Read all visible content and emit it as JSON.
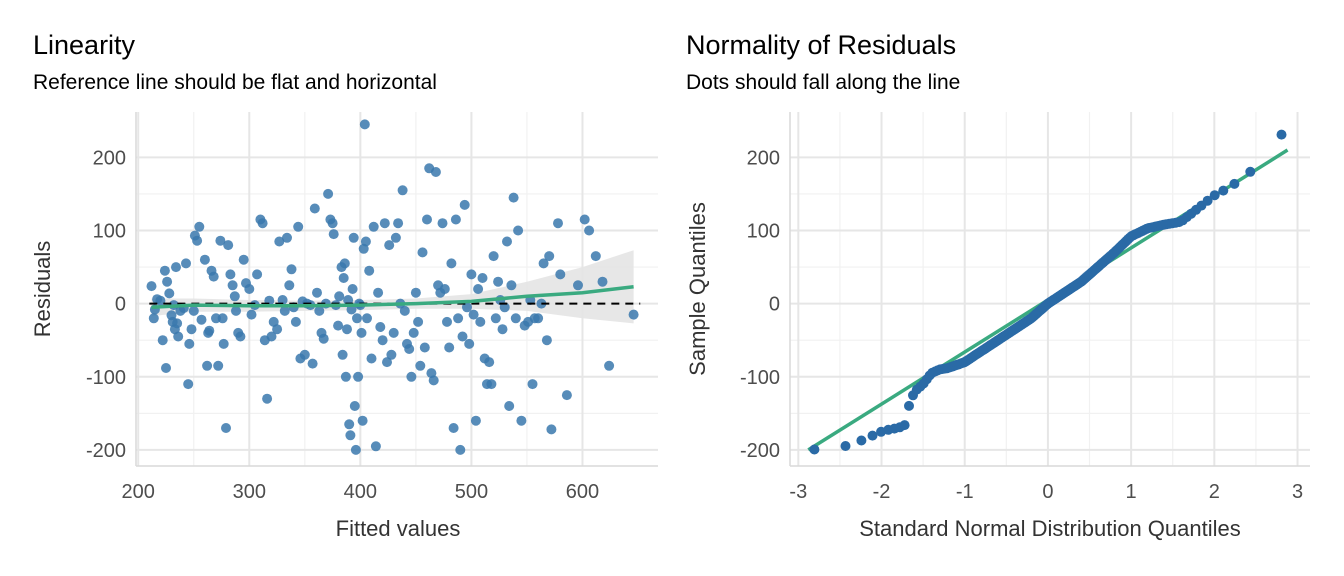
{
  "chart_data": [
    {
      "type": "scatter",
      "title": "Linearity",
      "subtitle": "Reference line should be flat and horizontal",
      "xlabel": "Fitted values",
      "ylabel": "Residuals",
      "xlim": [
        198,
        668
      ],
      "ylim": [
        -222,
        262
      ],
      "x_ticks": [
        200,
        300,
        400,
        500,
        600
      ],
      "x_tick_labels": [
        "200",
        "300",
        "400",
        "500",
        "600"
      ],
      "y_ticks": [
        -200,
        -100,
        0,
        100,
        200
      ],
      "y_tick_labels": [
        "-200",
        "-100",
        "0",
        "100",
        "200"
      ],
      "grid": true,
      "reference_line": 0,
      "colors": {
        "points": "#3a78ad",
        "smooth": "#3aaa80",
        "band": "#e4e4e4",
        "reference": "#000000",
        "grid": "#e8e8e8"
      },
      "points": [
        [
          212,
          24
        ],
        [
          214,
          -20
        ],
        [
          215,
          -8
        ],
        [
          217,
          6
        ],
        [
          220,
          4
        ],
        [
          222,
          -50
        ],
        [
          224,
          45
        ],
        [
          225,
          -88
        ],
        [
          226,
          30
        ],
        [
          228,
          14
        ],
        [
          230,
          -16
        ],
        [
          231,
          -25
        ],
        [
          232,
          -2
        ],
        [
          233,
          -35
        ],
        [
          234,
          50
        ],
        [
          235,
          -27
        ],
        [
          236,
          -45
        ],
        [
          238,
          -10
        ],
        [
          241,
          -6
        ],
        [
          243,
          55
        ],
        [
          245,
          -110
        ],
        [
          246,
          -55
        ],
        [
          248,
          -35
        ],
        [
          250,
          -10
        ],
        [
          251,
          93
        ],
        [
          253,
          86
        ],
        [
          255,
          105
        ],
        [
          257,
          -22
        ],
        [
          260,
          60
        ],
        [
          262,
          -85
        ],
        [
          263,
          -40
        ],
        [
          264,
          -37
        ],
        [
          266,
          45
        ],
        [
          268,
          37
        ],
        [
          270,
          -20
        ],
        [
          272,
          -85
        ],
        [
          274,
          86
        ],
        [
          276,
          -20
        ],
        [
          277,
          -55
        ],
        [
          279,
          -170
        ],
        [
          281,
          80
        ],
        [
          283,
          40
        ],
        [
          285,
          25
        ],
        [
          287,
          10
        ],
        [
          288,
          -10
        ],
        [
          290,
          -40
        ],
        [
          292,
          -45
        ],
        [
          295,
          60
        ],
        [
          297,
          28
        ],
        [
          300,
          20
        ],
        [
          302,
          -15
        ],
        [
          305,
          -2
        ],
        [
          307,
          40
        ],
        [
          310,
          115
        ],
        [
          312,
          110
        ],
        [
          314,
          -50
        ],
        [
          316,
          -130
        ],
        [
          318,
          4
        ],
        [
          320,
          -45
        ],
        [
          322,
          -25
        ],
        [
          325,
          -35
        ],
        [
          327,
          85
        ],
        [
          330,
          5
        ],
        [
          332,
          -10
        ],
        [
          334,
          90
        ],
        [
          336,
          25
        ],
        [
          338,
          47
        ],
        [
          340,
          -5
        ],
        [
          342,
          -25
        ],
        [
          344,
          105
        ],
        [
          346,
          -75
        ],
        [
          348,
          3
        ],
        [
          350,
          -70
        ],
        [
          352,
          0
        ],
        [
          355,
          -2
        ],
        [
          357,
          -82
        ],
        [
          359,
          130
        ],
        [
          361,
          15
        ],
        [
          363,
          -10
        ],
        [
          365,
          -40
        ],
        [
          367,
          -48
        ],
        [
          369,
          0
        ],
        [
          371,
          150
        ],
        [
          373,
          115
        ],
        [
          375,
          110
        ],
        [
          376,
          95
        ],
        [
          378,
          -2
        ],
        [
          380,
          -30
        ],
        [
          381,
          10
        ],
        [
          383,
          50
        ],
        [
          384,
          -70
        ],
        [
          385,
          35
        ],
        [
          386,
          55
        ],
        [
          387,
          -100
        ],
        [
          388,
          -35
        ],
        [
          389,
          5
        ],
        [
          390,
          -165
        ],
        [
          391,
          -180
        ],
        [
          392,
          -8
        ],
        [
          393,
          20
        ],
        [
          394,
          90
        ],
        [
          395,
          -140
        ],
        [
          396,
          -200
        ],
        [
          397,
          -20
        ],
        [
          398,
          -100
        ],
        [
          399,
          0
        ],
        [
          400,
          -2
        ],
        [
          401,
          -40
        ],
        [
          402,
          -160
        ],
        [
          403,
          75
        ],
        [
          404,
          245
        ],
        [
          405,
          85
        ],
        [
          406,
          -20
        ],
        [
          408,
          45
        ],
        [
          410,
          -75
        ],
        [
          412,
          105
        ],
        [
          414,
          -195
        ],
        [
          416,
          15
        ],
        [
          418,
          -32
        ],
        [
          420,
          -50
        ],
        [
          422,
          110
        ],
        [
          424,
          -80
        ],
        [
          426,
          80
        ],
        [
          428,
          -70
        ],
        [
          430,
          -40
        ],
        [
          432,
          90
        ],
        [
          434,
          110
        ],
        [
          436,
          0
        ],
        [
          438,
          155
        ],
        [
          440,
          -10
        ],
        [
          442,
          -55
        ],
        [
          444,
          -62
        ],
        [
          446,
          -100
        ],
        [
          448,
          -40
        ],
        [
          450,
          15
        ],
        [
          452,
          -25
        ],
        [
          454,
          -85
        ],
        [
          456,
          70
        ],
        [
          458,
          -60
        ],
        [
          460,
          115
        ],
        [
          462,
          185
        ],
        [
          464,
          -95
        ],
        [
          466,
          -105
        ],
        [
          468,
          180
        ],
        [
          470,
          25
        ],
        [
          472,
          15
        ],
        [
          474,
          110
        ],
        [
          476,
          20
        ],
        [
          478,
          -25
        ],
        [
          480,
          -60
        ],
        [
          482,
          55
        ],
        [
          484,
          -170
        ],
        [
          486,
          115
        ],
        [
          488,
          -20
        ],
        [
          490,
          -200
        ],
        [
          492,
          -45
        ],
        [
          494,
          135
        ],
        [
          496,
          -5
        ],
        [
          498,
          -55
        ],
        [
          500,
          40
        ],
        [
          502,
          -15
        ],
        [
          504,
          -160
        ],
        [
          506,
          20
        ],
        [
          508,
          -25
        ],
        [
          510,
          35
        ],
        [
          512,
          -75
        ],
        [
          514,
          -110
        ],
        [
          516,
          -80
        ],
        [
          518,
          -110
        ],
        [
          520,
          65
        ],
        [
          522,
          -20
        ],
        [
          524,
          30
        ],
        [
          526,
          5
        ],
        [
          528,
          -35
        ],
        [
          530,
          -5
        ],
        [
          532,
          85
        ],
        [
          534,
          -140
        ],
        [
          536,
          25
        ],
        [
          538,
          145
        ],
        [
          540,
          -20
        ],
        [
          542,
          100
        ],
        [
          545,
          -160
        ],
        [
          548,
          -30
        ],
        [
          551,
          -25
        ],
        [
          553,
          5
        ],
        [
          555,
          -110
        ],
        [
          557,
          -20
        ],
        [
          560,
          -20
        ],
        [
          563,
          0
        ],
        [
          565,
          55
        ],
        [
          568,
          -50
        ],
        [
          570,
          65
        ],
        [
          572,
          -172
        ],
        [
          578,
          110
        ],
        [
          580,
          40
        ],
        [
          586,
          -125
        ],
        [
          596,
          25
        ],
        [
          602,
          115
        ],
        [
          606,
          100
        ],
        [
          612,
          65
        ],
        [
          618,
          30
        ],
        [
          624,
          -85
        ],
        [
          646,
          -15
        ]
      ],
      "smooth_x": [
        212,
        250,
        300,
        350,
        400,
        450,
        500,
        550,
        600,
        646
      ],
      "smooth_y": [
        -5,
        -2,
        -3,
        -3,
        -2,
        0,
        3,
        10,
        15,
        23
      ],
      "band_half": [
        12,
        9,
        8,
        7,
        7,
        7,
        10,
        20,
        35,
        50
      ]
    },
    {
      "type": "scatter",
      "title": "Normality of Residuals",
      "subtitle": "Dots should fall along the line",
      "xlabel": "Standard Normal Distribution Quantiles",
      "ylabel": "Sample Quantiles",
      "xlim": [
        -3.1,
        3.15
      ],
      "ylim": [
        -222,
        262
      ],
      "x_ticks": [
        -3,
        -2,
        -1,
        0,
        1,
        2,
        3
      ],
      "x_tick_labels": [
        "-3",
        "-2",
        "-1",
        "0",
        "1",
        "2",
        "3"
      ],
      "y_ticks": [
        -200,
        -100,
        0,
        100,
        200
      ],
      "y_tick_labels": [
        "-200",
        "-100",
        "0",
        "100",
        "200"
      ],
      "grid": true,
      "colors": {
        "points": "#2a6aa6",
        "line": "#3aaa80",
        "grid": "#e8e8e8"
      },
      "line": {
        "x": [
          -2.88,
          2.88
        ],
        "y": [
          -200,
          210
        ]
      },
      "n_points": 200,
      "knots": [
        [
          -2.88,
          -200
        ],
        [
          -2.5,
          -197
        ],
        [
          -2.3,
          -190
        ],
        [
          -2.1,
          -180
        ],
        [
          -2.0,
          -175
        ],
        [
          -1.9,
          -172
        ],
        [
          -1.8,
          -170
        ],
        [
          -1.7,
          -165
        ],
        [
          -1.68,
          -145
        ],
        [
          -1.66,
          -135
        ],
        [
          -1.6,
          -120
        ],
        [
          -1.5,
          -110
        ],
        [
          -1.4,
          -95
        ],
        [
          -1.3,
          -90
        ],
        [
          -1.2,
          -88
        ],
        [
          -1.0,
          -80
        ],
        [
          -0.8,
          -65
        ],
        [
          -0.6,
          -50
        ],
        [
          -0.4,
          -35
        ],
        [
          -0.2,
          -20
        ],
        [
          0,
          0
        ],
        [
          0.2,
          15
        ],
        [
          0.4,
          30
        ],
        [
          0.6,
          50
        ],
        [
          0.8,
          70
        ],
        [
          1.0,
          92
        ],
        [
          1.2,
          103
        ],
        [
          1.4,
          108
        ],
        [
          1.6,
          112
        ],
        [
          1.8,
          130
        ],
        [
          2.0,
          148
        ],
        [
          2.2,
          160
        ],
        [
          2.4,
          178
        ],
        [
          2.5,
          185
        ],
        [
          2.88,
          242
        ]
      ]
    }
  ]
}
